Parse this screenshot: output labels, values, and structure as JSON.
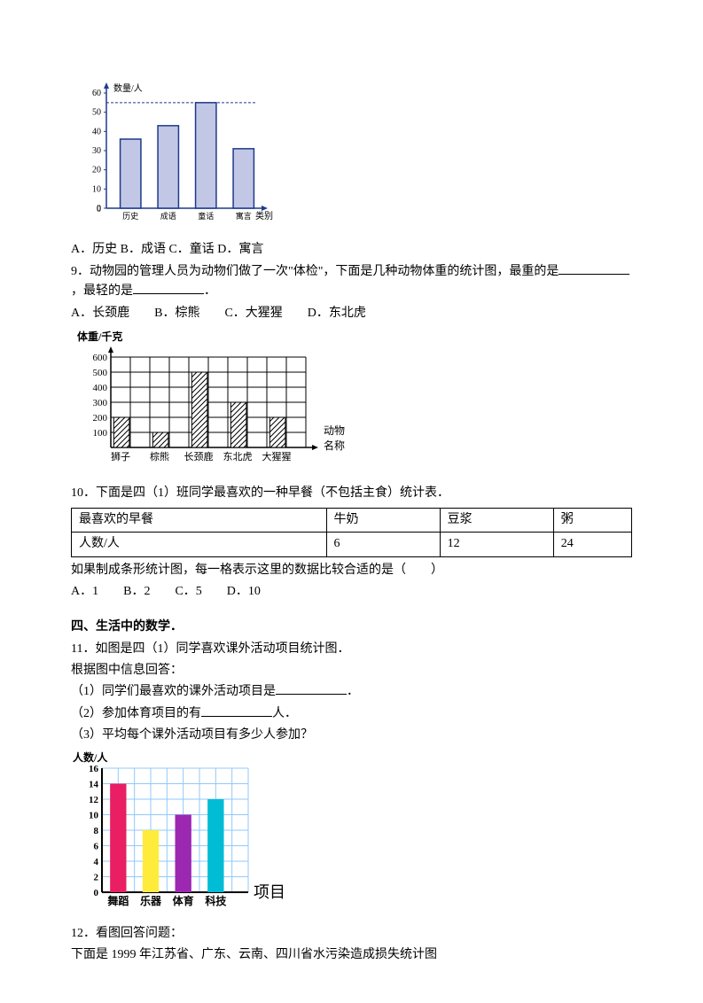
{
  "chart1": {
    "type": "bar",
    "y_label": "数量/人",
    "x_label": "类别",
    "categories": [
      "历史",
      "成语",
      "童话",
      "寓言"
    ],
    "values": [
      36,
      43,
      55,
      31
    ],
    "ylim": [
      0,
      60
    ],
    "ytick_step": 10,
    "bar_color": "#c2c7e6",
    "bar_border": "#1e3a8a",
    "axis_color": "#1e3a8a",
    "label_font": 10
  },
  "q8_options": "A．历史  B．成语  C．童话  D．寓言",
  "q9_text": "9．动物园的管理人员为动物们做了一次\"体检\"，下面是几种动物体重的统计图，最重的是",
  "q9_text2": "，最轻的是",
  "q9_text3": "．",
  "q9_options": "A．长颈鹿　　B．棕熊　　C．大猩猩　　D．东北虎",
  "chart2": {
    "type": "bar_grid",
    "y_label": "体重/千克",
    "x_label_1": "动物",
    "x_label_2": "名称",
    "categories": [
      "狮子",
      "棕熊",
      "长颈鹿",
      "东北虎",
      "大猩猩"
    ],
    "values": [
      200,
      100,
      500,
      300,
      200
    ],
    "ylim": [
      0,
      600
    ],
    "ytick_step": 100,
    "grid_color": "#000",
    "hatch_pattern": "diagonal"
  },
  "q10_text": "10．下面是四（1）班同学最喜欢的一种早餐（不包括主食）统计表．",
  "breakfast": {
    "headers": [
      "最喜欢的早餐",
      "牛奶",
      "豆浆",
      "粥"
    ],
    "row_label": "人数/人",
    "row_values": [
      6,
      12,
      24
    ]
  },
  "q10_text2": "如果制成条形统计图，每一格表示这里的数据比较合适的是（　　）",
  "q10_options": "A．1　　B．2　　C．5　　D．10",
  "section4_title": "四、生活中的数学．",
  "q11_text": "11．如图是四（1）同学喜欢课外活动项目统计图．",
  "q11_sub0": "根据图中信息回答：",
  "q11_sub1": "（1）同学们最喜欢的课外活动项目是",
  "q11_sub1_end": "．",
  "q11_sub2": "（2）参加体育项目的有",
  "q11_sub2_end": "人．",
  "q11_sub3": "（3）平均每个课外活动项目有多少人参加？",
  "chart3": {
    "type": "bar",
    "y_label": "人数/人",
    "x_label": "项目",
    "categories": [
      "舞蹈",
      "乐器",
      "体育",
      "科技"
    ],
    "values": [
      14,
      8,
      10,
      12
    ],
    "ylim": [
      0,
      16
    ],
    "ytick_step": 2,
    "bar_colors": [
      "#e91e63",
      "#ffeb3b",
      "#9c27b0",
      "#00bcd4"
    ],
    "grid_color": "#90caf9",
    "bg_color": "#ffffff",
    "axis_color": "#000"
  },
  "q12_text": "12．看图回答问题：",
  "q12_sub": "下面是 1999 年江苏省、广东、云南、四川省水污染造成损失统计图"
}
